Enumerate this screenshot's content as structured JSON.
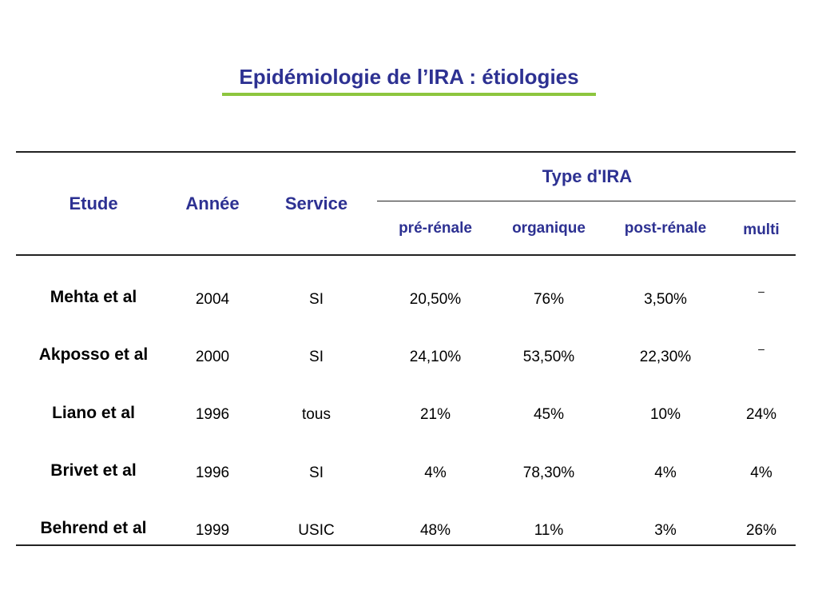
{
  "title": "Epidémiologie de l’IRA : étiologies",
  "colors": {
    "title": "#2d3192",
    "underline": "#8dc63f",
    "header": "#2d3192",
    "text": "#000000"
  },
  "table": {
    "headers": {
      "study": "Etude",
      "year": "Année",
      "service": "Service",
      "type_group": "Type d'IRA",
      "types": [
        "pré-rénale",
        "organique",
        "post-rénale",
        "multi"
      ]
    },
    "rows": [
      {
        "study": "Mehta et al",
        "year": "2004",
        "service": "SI",
        "values": [
          "20,50%",
          "76%",
          "3,50%",
          "–"
        ]
      },
      {
        "study": "Akposso et al",
        "year": "2000",
        "service": "SI",
        "values": [
          "24,10%",
          "53,50%",
          "22,30%",
          "–"
        ]
      },
      {
        "study": "Liano et al",
        "year": "1996",
        "service": "tous",
        "values": [
          "21%",
          "45%",
          "10%",
          "24%"
        ]
      },
      {
        "study": "Brivet et al",
        "year": "1996",
        "service": "SI",
        "values": [
          "4%",
          "78,30%",
          "4%",
          "4%"
        ]
      },
      {
        "study": "Behrend et al",
        "year": "1999",
        "service": "USIC",
        "values": [
          "48%",
          "11%",
          "3%",
          "26%"
        ]
      }
    ]
  }
}
